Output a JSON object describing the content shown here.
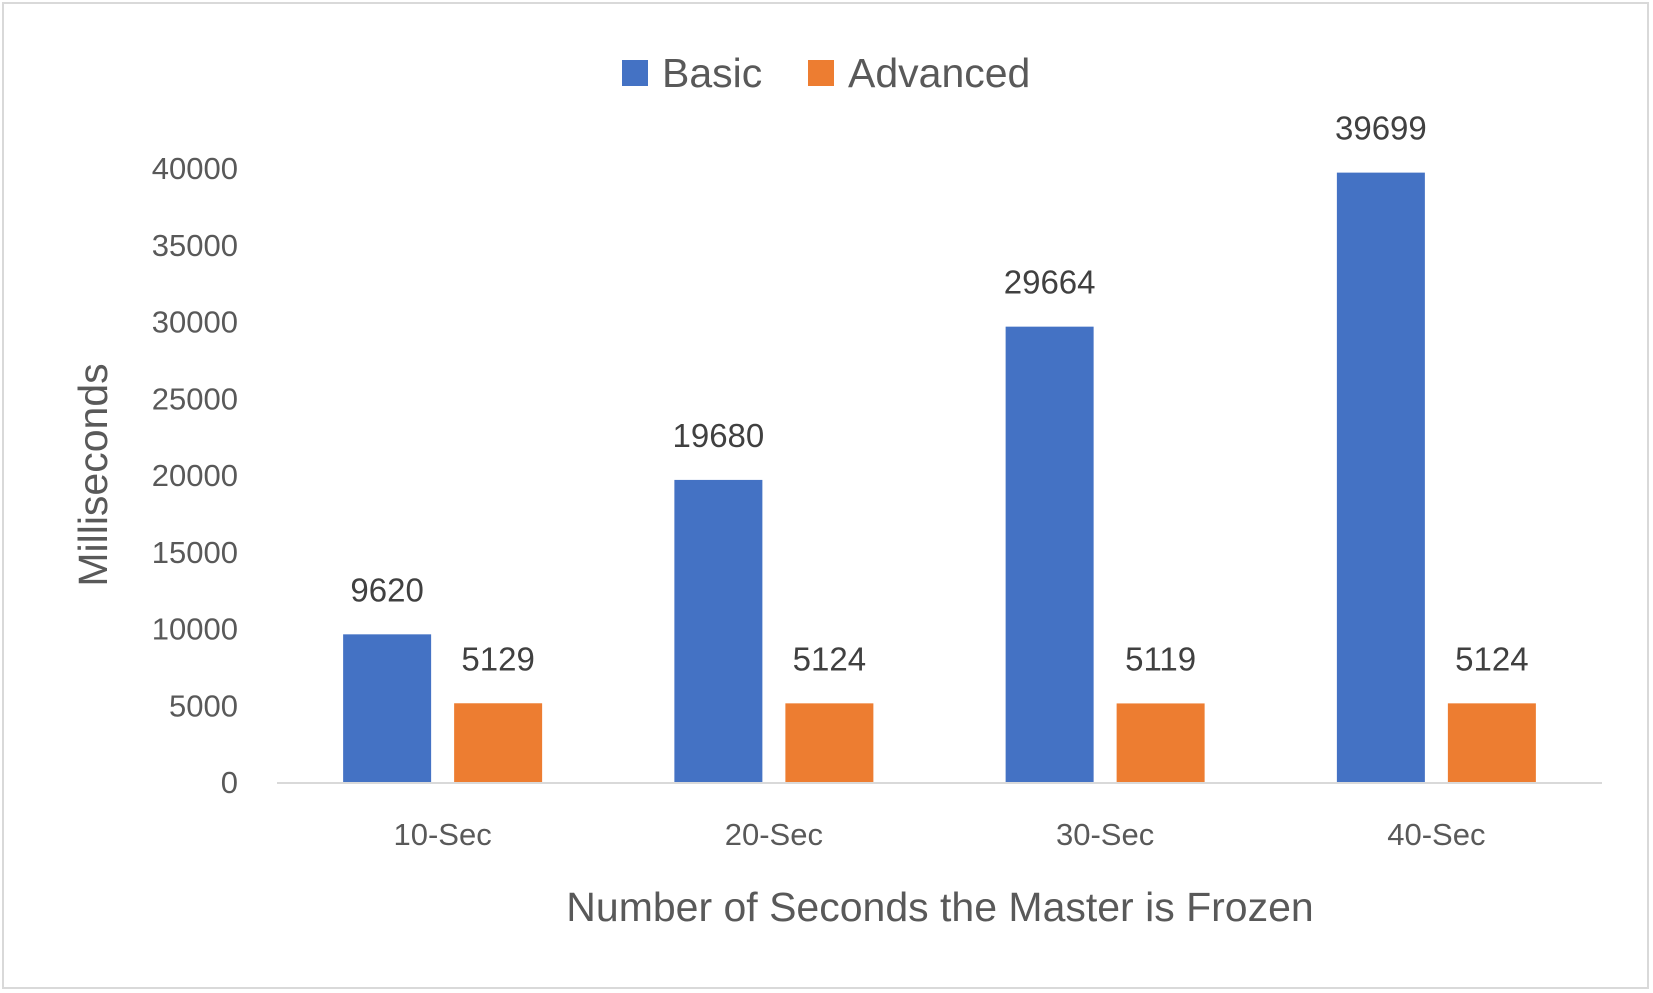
{
  "chart_data": {
    "type": "bar",
    "categories": [
      "10-Sec",
      "20-Sec",
      "30-Sec",
      "40-Sec"
    ],
    "series": [
      {
        "name": "Basic",
        "color": "#4472C4",
        "values": [
          9620,
          19680,
          29664,
          39699
        ]
      },
      {
        "name": "Advanced",
        "color": "#ED7D31",
        "values": [
          5129,
          5124,
          5119,
          5124
        ]
      }
    ],
    "xlabel": "Number of Seconds the Master is Frozen",
    "ylabel": "Milliseconds",
    "ylim": [
      0,
      40000
    ],
    "yticks": [
      "0",
      "5000",
      "10000",
      "15000",
      "20000",
      "25000",
      "30000",
      "35000",
      "40000"
    ],
    "grid": false,
    "legend_position": "top-center",
    "data_labels": true
  }
}
